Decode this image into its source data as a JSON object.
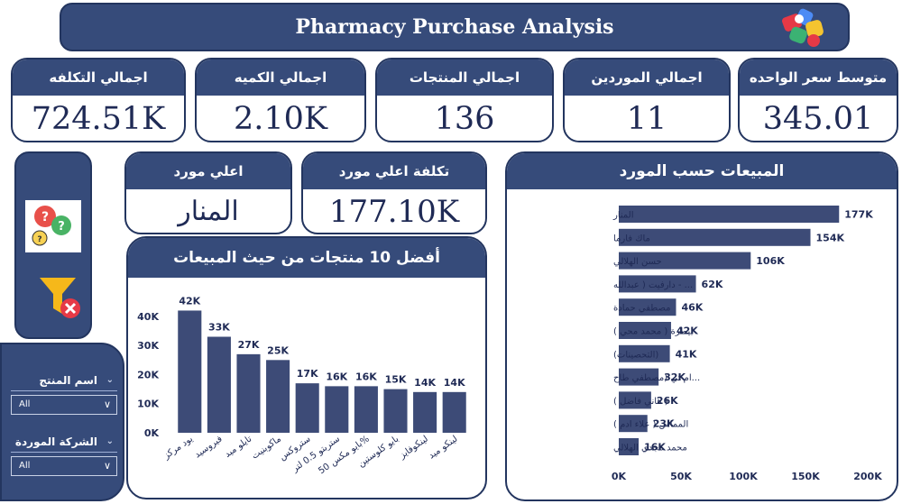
{
  "header": {
    "title": "Pharmacy Purchase Analysis"
  },
  "kpis": {
    "total_cost": {
      "label": "اجمالي التكلفه",
      "value": "724.51K"
    },
    "total_quantity": {
      "label": "اجمالي الكميه",
      "value": "2.10K"
    },
    "total_products": {
      "label": "اجمالي المنتجات",
      "value": "136"
    },
    "total_suppliers": {
      "label": "اجمالي الموردين",
      "value": "11"
    },
    "avg_unit_price": {
      "label": "متوسط سعر الواحده",
      "value": "345.01"
    },
    "top_supplier": {
      "label": "اعلي مورد",
      "value": "المنار"
    },
    "top_supplier_cost": {
      "label": "تكلفة اعلي مورد",
      "value": "177.10K"
    }
  },
  "filters": {
    "product": {
      "label": "اسم المنتج",
      "value": "All"
    },
    "company": {
      "label": "الشركة الموردة",
      "value": "All"
    }
  },
  "icons": {
    "logo": "pills-logo-icon",
    "chat": "chat-questions-icon",
    "clear_filter": "clear-filter-icon"
  },
  "colors": {
    "navy": "#364b7a",
    "bar": "#3d4b77",
    "text": "#1f2a55"
  },
  "chart_data": [
    {
      "type": "bar",
      "title": "أفضل 10 منتجات من حيث المبيعات",
      "categories": [
        "يود مركز",
        "فيروسيد",
        "تايلو ميد",
        "ماكوبنيت",
        "ستروكس",
        "ستربتو 0.5 لتر",
        "بايو مكس 50%",
        "بايو كلوستين",
        "لينكوفايز",
        "لينكو ميد"
      ],
      "values": [
        42,
        33,
        27,
        25,
        17,
        16,
        16,
        15,
        14,
        14
      ],
      "data_labels": [
        "42K",
        "33K",
        "27K",
        "25K",
        "17K",
        "16K",
        "16K",
        "15K",
        "14K",
        "14K"
      ],
      "y_ticks": [
        "0K",
        "10K",
        "20K",
        "30K",
        "40K"
      ],
      "ylim": [
        0,
        44
      ],
      "grid": false
    },
    {
      "type": "bar",
      "orientation": "horizontal",
      "title": "المبيعات حسب المورد",
      "categories": [
        "المنار",
        "ماك فارما",
        "حسن الهلالي",
        "... - دارفيت ( عبدالله",
        "مصطفي حمادة",
        "بيطرة ( محمد محي )",
        "(التحصينات)",
        "...ام تي (مصطفي طاح",
        "( هاني فاضل )",
        "المماس ( علاء ادم )",
        "محمد مجدي الهلالي"
      ],
      "values": [
        177,
        154,
        106,
        62,
        46,
        42,
        41,
        32,
        26,
        23,
        16
      ],
      "data_labels": [
        "177K",
        "154K",
        "106K",
        "62K",
        "46K",
        "42K",
        "41K",
        "32K",
        "26K",
        "23K",
        "16K"
      ],
      "x_ticks": [
        "0K",
        "50K",
        "100K",
        "150K",
        "200K"
      ],
      "xlim": [
        0,
        200
      ],
      "grid": false
    }
  ]
}
